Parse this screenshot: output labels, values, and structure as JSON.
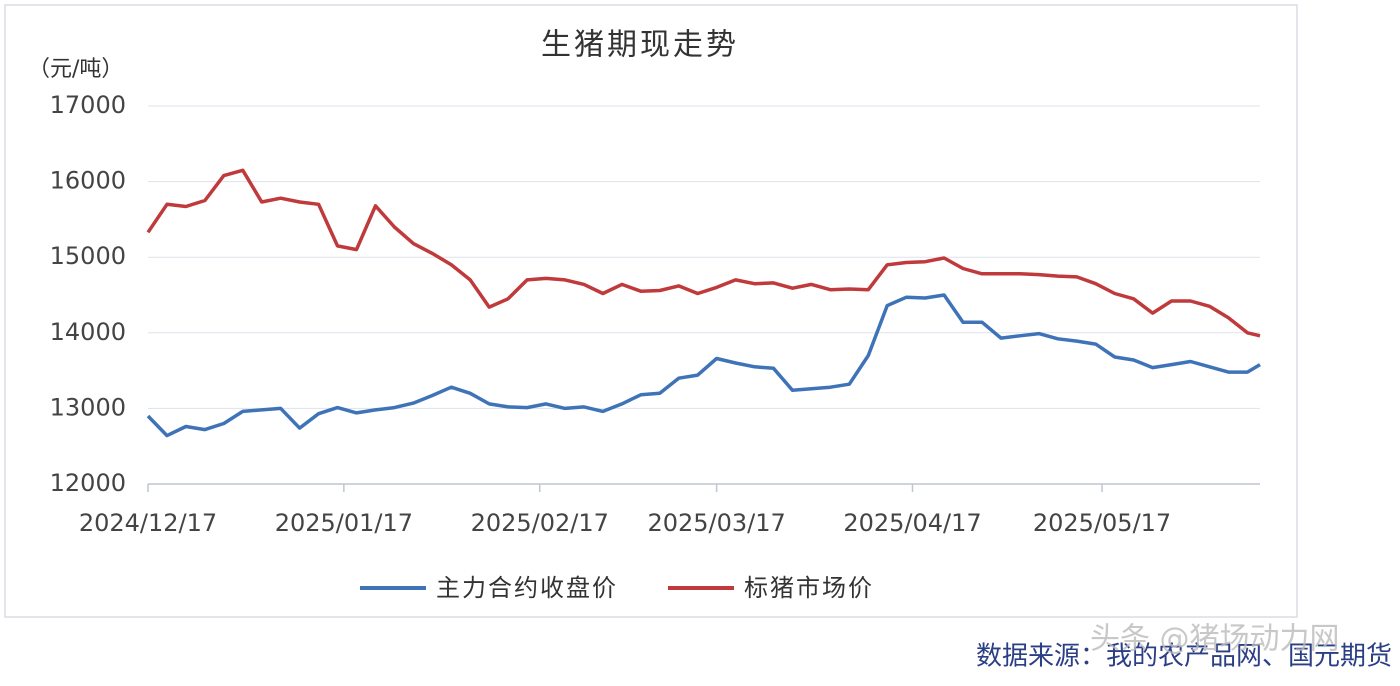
{
  "chart_data": {
    "type": "line",
    "title": "生猪期现走势",
    "y_unit": "（元/吨）",
    "source": "数据来源：我的农产品网、国元期货",
    "watermark": "头条 @猪场动力网",
    "x": [
      "2024/12/17",
      "2024/12/20",
      "2024/12/23",
      "2024/12/26",
      "2024/12/29",
      "2025/01/01",
      "2025/01/04",
      "2025/01/07",
      "2025/01/10",
      "2025/01/13",
      "2025/01/16",
      "2025/01/19",
      "2025/01/22",
      "2025/01/25",
      "2025/01/28",
      "2025/01/31",
      "2025/02/03",
      "2025/02/06",
      "2025/02/09",
      "2025/02/12",
      "2025/02/15",
      "2025/02/18",
      "2025/02/21",
      "2025/02/24",
      "2025/02/27",
      "2025/03/02",
      "2025/03/05",
      "2025/03/08",
      "2025/03/11",
      "2025/03/14",
      "2025/03/17",
      "2025/03/20",
      "2025/03/23",
      "2025/03/26",
      "2025/03/29",
      "2025/04/01",
      "2025/04/04",
      "2025/04/07",
      "2025/04/10",
      "2025/04/13",
      "2025/04/16",
      "2025/04/19",
      "2025/04/22",
      "2025/04/25",
      "2025/04/28",
      "2025/05/01",
      "2025/05/04",
      "2025/05/07",
      "2025/05/10",
      "2025/05/13",
      "2025/05/16",
      "2025/05/19",
      "2025/05/22",
      "2025/05/25",
      "2025/05/28",
      "2025/05/31",
      "2025/06/03",
      "2025/06/06",
      "2025/06/09",
      "2025/06/11"
    ],
    "series": [
      {
        "name": "主力合约收盘价",
        "color": "#3f73b8",
        "values": [
          12900,
          12640,
          12760,
          12720,
          12800,
          12960,
          12980,
          13000,
          12740,
          12930,
          13010,
          12940,
          12980,
          13010,
          13070,
          13170,
          13280,
          13200,
          13060,
          13020,
          13010,
          13060,
          13000,
          13020,
          12960,
          13060,
          13180,
          13200,
          13400,
          13440,
          13660,
          13600,
          13550,
          13530,
          13240,
          13260,
          13280,
          13320,
          13700,
          14360,
          14470,
          14460,
          14500,
          14140,
          14140,
          13930,
          13960,
          13990,
          13920,
          13890,
          13850,
          13680,
          13640,
          13540,
          13580,
          13620,
          13550,
          13480,
          13480,
          13580
        ]
      },
      {
        "name": "标猪市场价",
        "color": "#c0393b",
        "values": [
          15330,
          15700,
          15670,
          15750,
          16080,
          16150,
          15730,
          15780,
          15730,
          15700,
          15150,
          15100,
          15680,
          15400,
          15180,
          15050,
          14900,
          14700,
          14340,
          14450,
          14700,
          14720,
          14700,
          14640,
          14520,
          14640,
          14550,
          14560,
          14620,
          14520,
          14600,
          14700,
          14650,
          14660,
          14590,
          14640,
          14570,
          14580,
          14570,
          14900,
          14930,
          14940,
          14990,
          14850,
          14780,
          14780,
          14780,
          14770,
          14750,
          14740,
          14650,
          14520,
          14450,
          14260,
          14420,
          14420,
          14350,
          14200,
          14000,
          13960
        ]
      }
    ],
    "xlim": [
      "2024/12/17",
      "2025/06/11"
    ],
    "xticks": [
      "2024/12/17",
      "2025/01/17",
      "2025/02/17",
      "2025/03/17",
      "2025/04/17",
      "2025/05/17"
    ],
    "ylim": [
      12000,
      17000
    ],
    "yticks": [
      12000,
      13000,
      14000,
      15000,
      16000,
      17000
    ],
    "grid": true
  }
}
